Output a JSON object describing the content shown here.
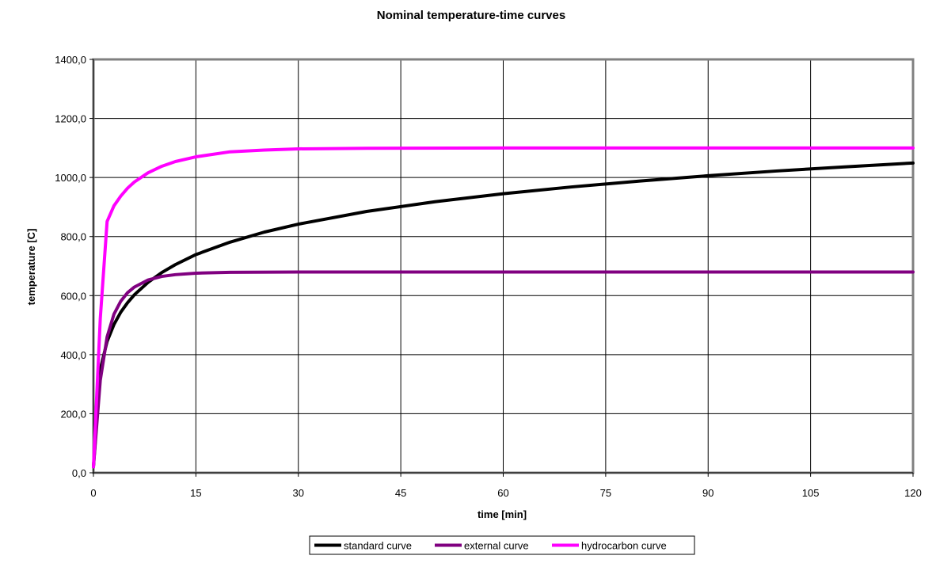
{
  "chart_data": {
    "type": "line",
    "title": "Nominal temperature-time curves",
    "xlabel": "time [min]",
    "ylabel": "temperature [C]",
    "xlim": [
      0,
      120
    ],
    "ylim": [
      0,
      1400
    ],
    "x_ticks": [
      0,
      15,
      30,
      45,
      60,
      75,
      90,
      105,
      120
    ],
    "y_ticks": [
      0,
      200,
      400,
      600,
      800,
      1000,
      1200,
      1400
    ],
    "x_tick_labels": [
      "0",
      "15",
      "30",
      "45",
      "60",
      "75",
      "90",
      "105",
      "120"
    ],
    "y_tick_labels": [
      "0,0",
      "200,0",
      "400,0",
      "600,0",
      "800,0",
      "1000,0",
      "1200,0",
      "1400,0"
    ],
    "grid": true,
    "legend_position": "bottom",
    "series": [
      {
        "name": "standard curve",
        "color": "#000000",
        "x": [
          0,
          1,
          2,
          3,
          4,
          5,
          6,
          8,
          10,
          12,
          15,
          20,
          25,
          30,
          40,
          50,
          60,
          70,
          80,
          90,
          100,
          110,
          120
        ],
        "y": [
          20,
          349,
          445,
          502,
          544,
          576,
          603,
          645,
          678,
          705,
          739,
          781,
          815,
          842,
          885,
          918,
          945,
          968,
          988,
          1006,
          1022,
          1036,
          1049
        ]
      },
      {
        "name": "external curve",
        "color": "#800080",
        "x": [
          0,
          1,
          2,
          3,
          4,
          5,
          6,
          8,
          10,
          12,
          15,
          20,
          30,
          60,
          90,
          120
        ],
        "y": [
          20,
          313,
          460,
          537,
          581,
          610,
          629,
          653,
          665,
          671,
          676,
          679,
          680,
          680,
          680,
          680
        ]
      },
      {
        "name": "hydrocarbon curve",
        "color": "#ff00ff",
        "x": [
          0,
          1,
          2,
          3,
          4,
          5,
          6,
          8,
          10,
          12,
          15,
          20,
          25,
          30,
          40,
          60,
          90,
          120
        ],
        "y": [
          20,
          522,
          851,
          904,
          937,
          964,
          985,
          1016,
          1038,
          1054,
          1070,
          1087,
          1093,
          1097,
          1099,
          1100,
          1100,
          1100
        ]
      }
    ]
  }
}
